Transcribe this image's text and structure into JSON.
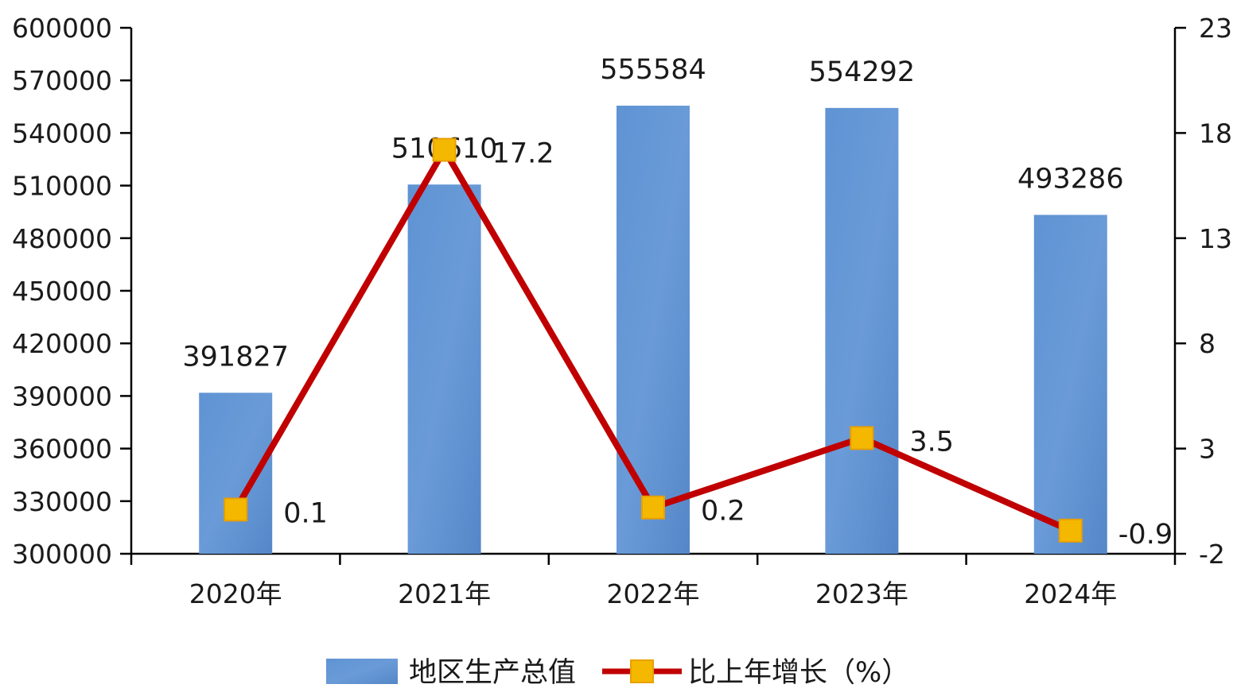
{
  "chart_data": {
    "type": "bar",
    "categories": [
      "2020年",
      "2021年",
      "2022年",
      "2023年",
      "2024年"
    ],
    "series": [
      {
        "name": "地区生产总值",
        "type": "bar",
        "axis": "left",
        "values": [
          391827,
          510610,
          555584,
          554292,
          493286
        ],
        "color": "#5b8fcf"
      },
      {
        "name": "比上年增长（%）",
        "type": "line",
        "axis": "right",
        "values": [
          0.1,
          17.2,
          0.2,
          3.5,
          -0.9
        ],
        "line_color": "#c00000",
        "marker_color": "#f5b800"
      }
    ],
    "y_left": {
      "min": 300000,
      "max": 600000,
      "ticks": [
        300000,
        330000,
        360000,
        390000,
        420000,
        450000,
        480000,
        510000,
        540000,
        570000,
        600000
      ]
    },
    "y_right": {
      "min": -2,
      "max": 23,
      "ticks": [
        -2,
        3,
        8,
        13,
        18,
        23
      ]
    },
    "legend_position": "bottom",
    "grid": false
  }
}
